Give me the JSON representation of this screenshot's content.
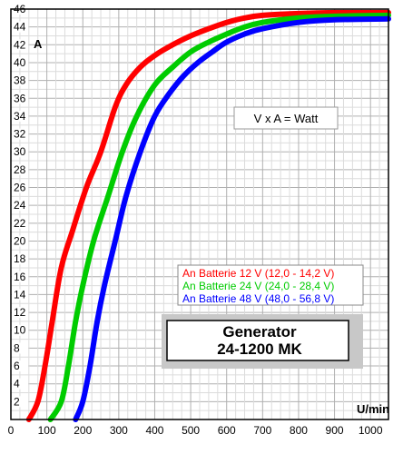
{
  "chart_data": {
    "type": "line",
    "ylabel": "A",
    "xlabel": "U/min",
    "xlim": [
      0,
      1050
    ],
    "ylim": [
      0,
      46
    ],
    "x_ticks": [
      0,
      100,
      200,
      300,
      400,
      500,
      600,
      700,
      800,
      900,
      1000
    ],
    "y_ticks": [
      2,
      4,
      6,
      8,
      10,
      12,
      14,
      16,
      18,
      20,
      22,
      24,
      26,
      28,
      30,
      32,
      34,
      36,
      38,
      40,
      42,
      44,
      46
    ],
    "grid": true,
    "annotation": "V x A = Watt",
    "legend_position": "lower-right",
    "series": [
      {
        "name": "An Batterie 12 V (12,0 - 14,2 V)",
        "color": "#ff0000",
        "points": [
          [
            50,
            0
          ],
          [
            75,
            2
          ],
          [
            95,
            6
          ],
          [
            115,
            11
          ],
          [
            140,
            17
          ],
          [
            170,
            21
          ],
          [
            210,
            26
          ],
          [
            250,
            30
          ],
          [
            290,
            35
          ],
          [
            320,
            37.5
          ],
          [
            360,
            39.5
          ],
          [
            400,
            40.8
          ],
          [
            450,
            42
          ],
          [
            500,
            43
          ],
          [
            550,
            43.8
          ],
          [
            600,
            44.5
          ],
          [
            650,
            45
          ],
          [
            700,
            45.3
          ],
          [
            800,
            45.5
          ],
          [
            900,
            45.6
          ],
          [
            1050,
            45.6
          ]
        ]
      },
      {
        "name": "An Batterie 24 V (24,0 - 28,4 V)",
        "color": "#00cc00",
        "points": [
          [
            110,
            0
          ],
          [
            140,
            2
          ],
          [
            160,
            6
          ],
          [
            180,
            11
          ],
          [
            200,
            15
          ],
          [
            230,
            20
          ],
          [
            270,
            25
          ],
          [
            310,
            30
          ],
          [
            350,
            34
          ],
          [
            400,
            37.5
          ],
          [
            450,
            39.5
          ],
          [
            500,
            41.2
          ],
          [
            550,
            42.3
          ],
          [
            600,
            43.2
          ],
          [
            650,
            44
          ],
          [
            700,
            44.5
          ],
          [
            800,
            45
          ],
          [
            900,
            45.2
          ],
          [
            1050,
            45.3
          ]
        ]
      },
      {
        "name": "An Batterie 48 V (48,0 - 56,8 V)",
        "color": "#0000ff",
        "points": [
          [
            180,
            0
          ],
          [
            200,
            2
          ],
          [
            220,
            6
          ],
          [
            240,
            11
          ],
          [
            260,
            15
          ],
          [
            290,
            20
          ],
          [
            320,
            25
          ],
          [
            360,
            30
          ],
          [
            400,
            34
          ],
          [
            440,
            36.5
          ],
          [
            480,
            38.5
          ],
          [
            520,
            40
          ],
          [
            560,
            41.2
          ],
          [
            600,
            42.3
          ],
          [
            650,
            43.2
          ],
          [
            700,
            43.8
          ],
          [
            800,
            44.5
          ],
          [
            900,
            44.8
          ],
          [
            1050,
            44.9
          ]
        ]
      }
    ],
    "title_box": {
      "line1": "Generator",
      "line2": "24-1200 MK"
    }
  }
}
